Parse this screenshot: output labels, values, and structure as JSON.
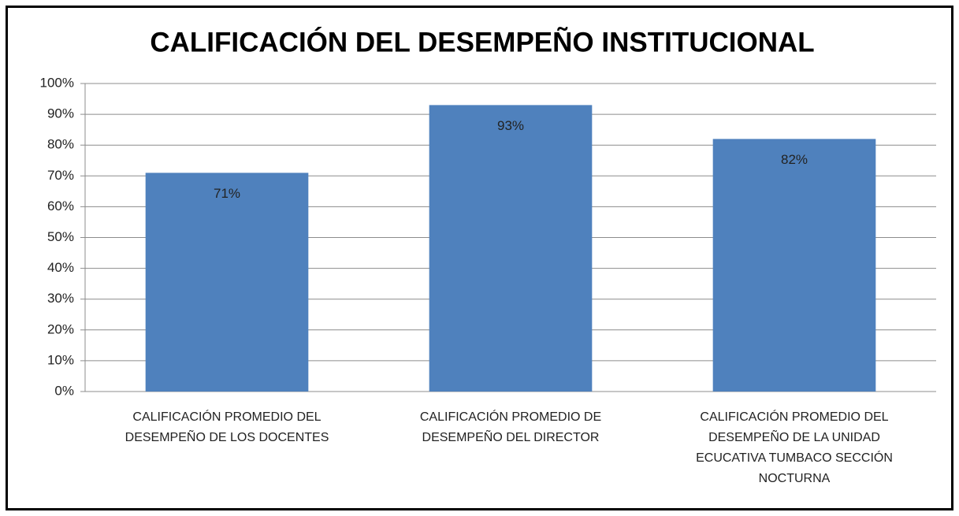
{
  "chart_data": {
    "type": "bar",
    "title": "CALIFICACIÓN DEL DESEMPEÑO INSTITUCIONAL",
    "categories": [
      "CALIFICACIÓN PROMEDIO DEL DESEMPEÑO DE LOS DOCENTES",
      "CALIFICACIÓN PROMEDIO DE DESEMPEÑO DEL DIRECTOR",
      "CALIFICACIÓN PROMEDIO DEL DESEMPEÑO DE LA UNIDAD ECUCATIVA TUMBACO SECCIÓN NOCTURNA"
    ],
    "values": [
      71,
      93,
      82
    ],
    "value_labels": [
      "71%",
      "93%",
      "82%"
    ],
    "color": "#4f81bd",
    "ylim": [
      0,
      100
    ],
    "yticks": [
      {
        "value": 0,
        "label": "0%"
      },
      {
        "value": 10,
        "label": "10%"
      },
      {
        "value": 20,
        "label": "20%"
      },
      {
        "value": 30,
        "label": "30%"
      },
      {
        "value": 40,
        "label": "40%"
      },
      {
        "value": 50,
        "label": "50%"
      },
      {
        "value": 60,
        "label": "60%"
      },
      {
        "value": 70,
        "label": "70%"
      },
      {
        "value": 80,
        "label": "80%"
      },
      {
        "value": 90,
        "label": "90%"
      },
      {
        "value": 100,
        "label": "100%"
      }
    ],
    "grid": true
  }
}
